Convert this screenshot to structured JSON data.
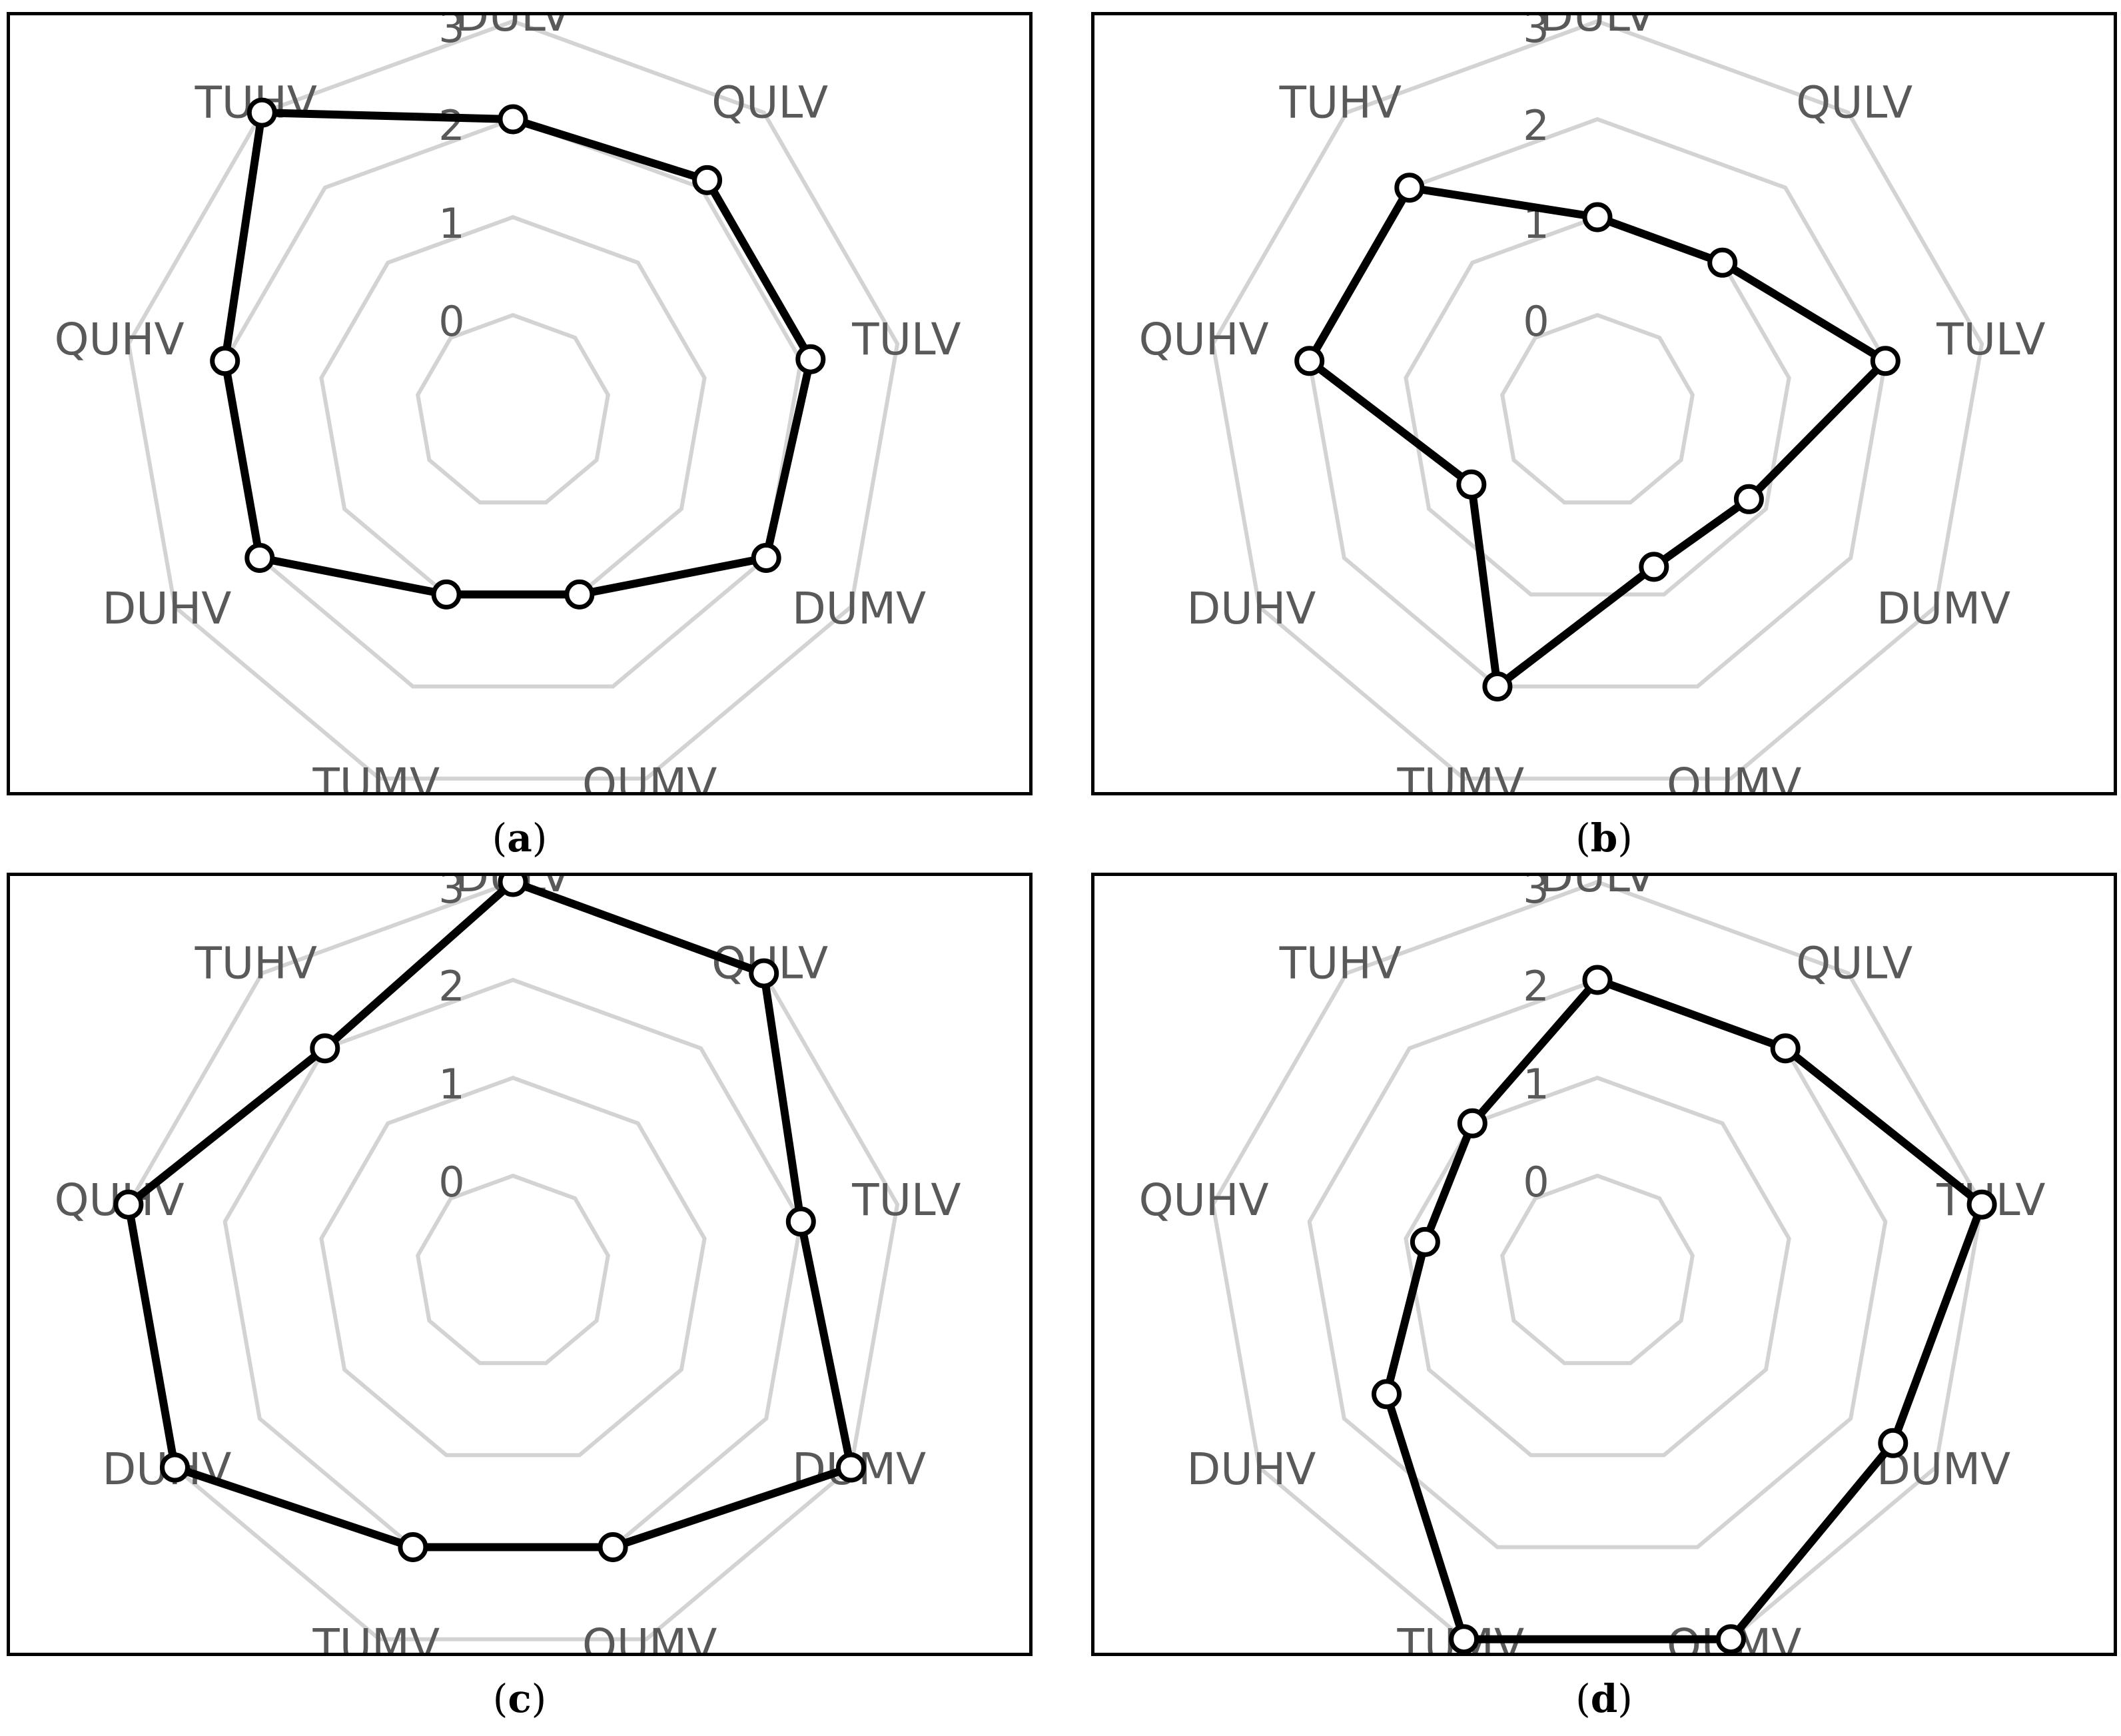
{
  "chart_data": [
    {
      "type": "radar",
      "panel": "a",
      "caption": "a",
      "categories": [
        "DULV",
        "QULV",
        "TULV",
        "DUMV",
        "QUMV",
        "TUMV",
        "DUHV",
        "QUHV",
        "TUHV"
      ],
      "rlim": [
        0,
        3
      ],
      "rticks": [
        "0",
        "1",
        "2",
        "3"
      ],
      "series": [
        {
          "values": [
            2.0,
            2.1,
            2.1,
            2.0,
            1.0,
            1.0,
            2.0,
            2.0,
            3.0
          ]
        }
      ]
    },
    {
      "type": "radar",
      "panel": "b",
      "caption": "b",
      "categories": [
        "DULV",
        "QULV",
        "TULV",
        "DUMV",
        "QUMV",
        "TUMV",
        "DUHV",
        "QUHV",
        "TUHV"
      ],
      "rlim": [
        0,
        3
      ],
      "rticks": [
        "0",
        "1",
        "2",
        "3"
      ],
      "series": [
        {
          "values": [
            1.0,
            1.0,
            2.0,
            0.8,
            0.7,
            2.0,
            0.5,
            2.0,
            2.0
          ]
        }
      ]
    },
    {
      "type": "radar",
      "panel": "c",
      "caption": "c",
      "categories": [
        "DULV",
        "QULV",
        "TULV",
        "DUMV",
        "QUMV",
        "TUMV",
        "DUHV",
        "QUHV",
        "TUHV"
      ],
      "rlim": [
        0,
        3
      ],
      "rticks": [
        "0",
        "1",
        "2",
        "3"
      ],
      "series": [
        {
          "values": [
            3.0,
            3.0,
            2.0,
            3.0,
            2.0,
            2.0,
            3.0,
            3.0,
            2.0
          ]
        }
      ]
    },
    {
      "type": "radar",
      "panel": "d",
      "caption": "d",
      "categories": [
        "DULV",
        "QULV",
        "TULV",
        "DUMV",
        "QUMV",
        "TUMV",
        "DUHV",
        "QUHV",
        "TUHV"
      ],
      "rlim": [
        0,
        3
      ],
      "rticks": [
        "0",
        "1",
        "2",
        "3"
      ],
      "series": [
        {
          "values": [
            2.0,
            2.0,
            3.0,
            2.5,
            3.0,
            3.0,
            1.5,
            0.8,
            1.0
          ]
        }
      ]
    }
  ],
  "style": {
    "grid_color": "#d3d3d3",
    "label_color": "#595959",
    "line_color": "#000000",
    "marker_fill": "#ffffff"
  }
}
